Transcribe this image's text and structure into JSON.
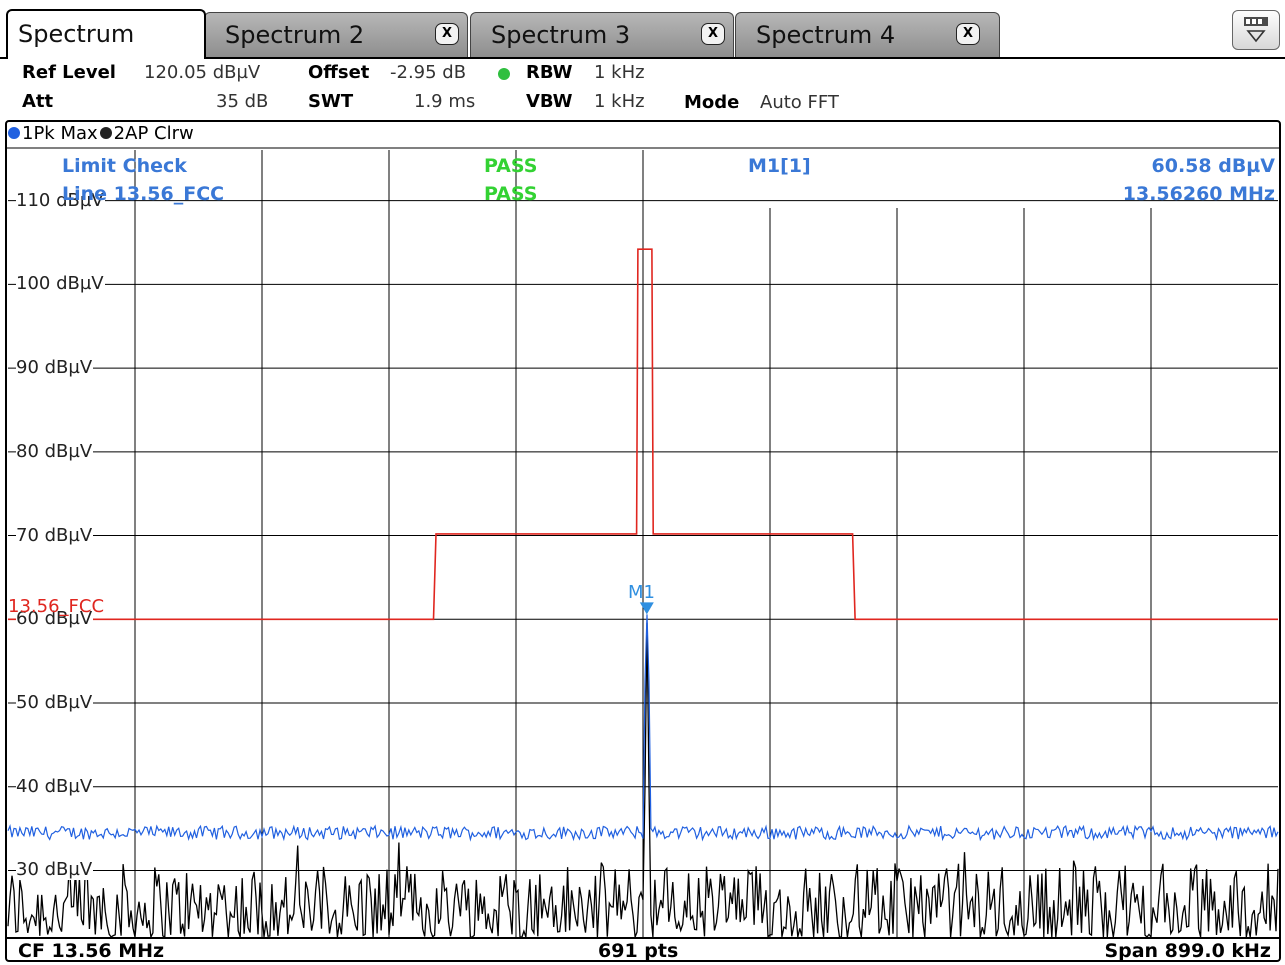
{
  "tabs": [
    {
      "label": "Spectrum",
      "active": true,
      "closable": false
    },
    {
      "label": "Spectrum 2",
      "active": false,
      "closable": true
    },
    {
      "label": "Spectrum 3",
      "active": false,
      "closable": true
    },
    {
      "label": "Spectrum 4",
      "active": false,
      "closable": true
    }
  ],
  "close_glyph": "X",
  "menu_icon": "overview-menu-icon",
  "settings": {
    "ref_level_label": "Ref Level",
    "ref_level_value": "120.05 dBµV",
    "offset_label": "Offset",
    "offset_value": "-2.95 dB",
    "rbw_label": "RBW",
    "rbw_value": "1 kHz",
    "att_label": "Att",
    "att_value": "35 dB",
    "swt_label": "SWT",
    "swt_value": "1.9 ms",
    "vbw_label": "VBW",
    "vbw_value": "1 kHz",
    "mode_label": "Mode",
    "mode_value": "Auto FFT",
    "rbw_indicator_color": "#2fbf3f"
  },
  "traces": [
    {
      "label": "1Pk Max",
      "color": "#2060e0"
    },
    {
      "label": "2AP Clrw",
      "color": "#222222"
    }
  ],
  "overlay": {
    "limit_check_label": "Limit Check",
    "limit_check_result": "PASS",
    "line_label": "Line 13.56_FCC",
    "line_result": "PASS",
    "marker_name": "M1[1]",
    "marker_level": "60.58 dBµV",
    "marker_freq": "13.56260 MHz"
  },
  "limit_line_label": "13.56_FCC",
  "marker_label": "M1",
  "footer": {
    "cf": "CF 13.56 MHz",
    "points": "691 pts",
    "span": "Span 899.0 kHz"
  },
  "colors": {
    "limit_line": "#e0261f",
    "trace1": "#2060e0",
    "trace2": "#000000",
    "marker": "#2f8fe0",
    "pass": "#33d233",
    "info_blue": "#3a78d6"
  },
  "chart_data": {
    "type": "line",
    "y_unit": "dBµV",
    "y_ticks": [
      "110 dBµV",
      "100 dBµV",
      "90 dBµV",
      "80 dBµV",
      "70 dBµV",
      "60 dBµV",
      "50 dBµV",
      "40 dBµV",
      "30 dBµV"
    ],
    "y_tick_values": [
      110,
      100,
      90,
      80,
      70,
      60,
      50,
      40,
      30
    ],
    "ylim": [
      22.05,
      116.05
    ],
    "x_divisions": 10,
    "x_center_mhz": 13.56,
    "span_khz": 899.0,
    "points": 691,
    "grid": true,
    "limit_line": {
      "name": "13.56_FCC",
      "x_div": [
        0,
        3.35,
        3.37,
        4.95,
        4.96,
        5.07,
        5.08,
        6.65,
        6.67,
        10
      ],
      "y": [
        60,
        60,
        70.2,
        70.2,
        104.2,
        104.2,
        70.2,
        70.2,
        60,
        60
      ]
    },
    "series": [
      {
        "name": "1Pk Max",
        "baseline": 34.5,
        "peak_x_div": 5.03,
        "peak": 60.58
      },
      {
        "name": "2AP Clrw",
        "baseline": 25,
        "peak_x_div": 5.03,
        "peak": 60.58
      }
    ],
    "marker": {
      "name": "M1",
      "x_div": 5.03,
      "y": 60.58
    }
  }
}
